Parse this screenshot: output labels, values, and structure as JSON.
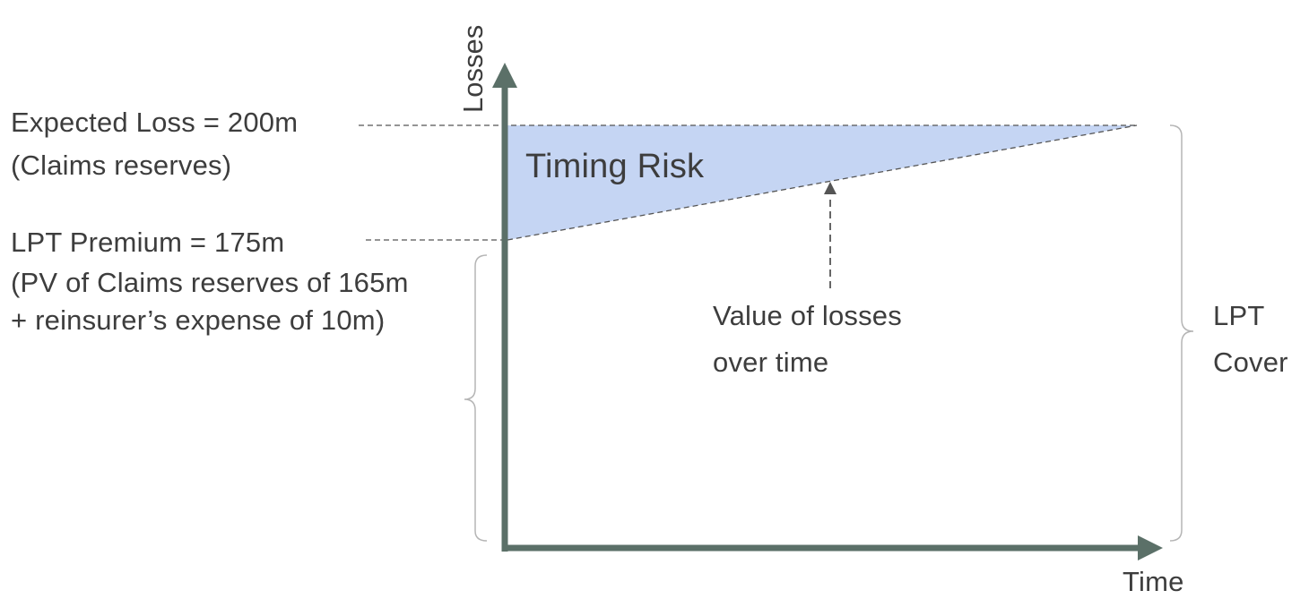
{
  "axes": {
    "y_label": "Losses",
    "x_label": "Time"
  },
  "expected_loss": {
    "line1": "Expected Loss = 200m",
    "line2": "(Claims reserves)"
  },
  "premium": {
    "line1": "LPT Premium = 175m",
    "line2": "(PV of Claims reserves of 165m",
    "line3": "+ reinsurer’s expense of 10m)"
  },
  "timing_risk": "Timing Risk",
  "value_of_losses": {
    "line1": "Value of losses",
    "line2": "over time"
  },
  "lpt_cover": {
    "line1": "LPT",
    "line2": "Cover"
  },
  "colors": {
    "axis": "#5b7068",
    "fill": "#c5d5f3",
    "text": "#3d3d3d",
    "bracket": "#b5b5b5",
    "dashed": "#555555"
  }
}
